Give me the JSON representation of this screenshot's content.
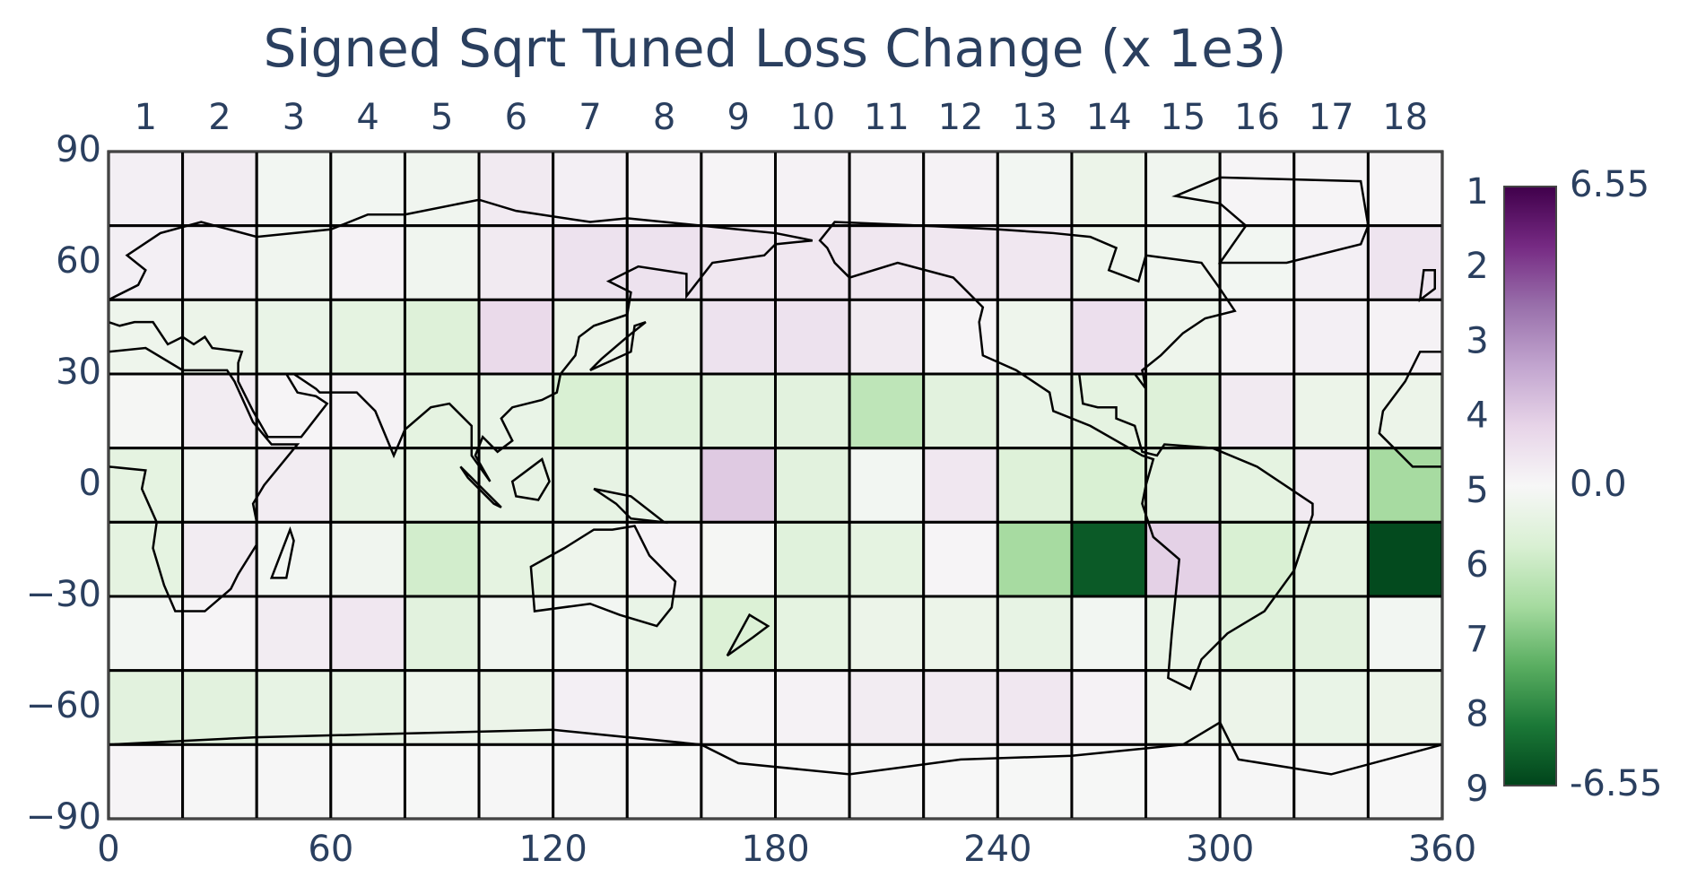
{
  "chart_data": {
    "type": "heatmap",
    "title": "Signed Sqrt Tuned Loss Change (x 1e3)",
    "columns": [
      "1",
      "2",
      "3",
      "4",
      "5",
      "6",
      "7",
      "8",
      "9",
      "10",
      "11",
      "12",
      "13",
      "14",
      "15",
      "16",
      "17",
      "18"
    ],
    "rows": [
      "1",
      "2",
      "3",
      "4",
      "5",
      "6",
      "7",
      "8",
      "9"
    ],
    "z": [
      [
        0.3,
        0.4,
        -0.2,
        -0.2,
        -0.3,
        0.5,
        0.3,
        0.2,
        0.1,
        0.2,
        0.2,
        0.2,
        -0.2,
        -0.5,
        -0.3,
        0.1,
        0.1,
        0.1
      ],
      [
        0.3,
        0.3,
        -0.3,
        0.2,
        -0.3,
        0.5,
        0.8,
        0.8,
        0.6,
        0.6,
        0.6,
        0.6,
        0.6,
        -0.4,
        -0.3,
        -0.2,
        0.3,
        0.7
      ],
      [
        -0.4,
        -0.5,
        -0.6,
        -0.8,
        -1.1,
        1.1,
        -0.5,
        -0.5,
        0.8,
        0.8,
        0.5,
        0.1,
        -0.4,
        0.9,
        -0.4,
        0.2,
        0.3,
        0.2
      ],
      [
        -0.1,
        0.4,
        0.1,
        0.2,
        -0.8,
        -0.6,
        -1.3,
        -1.0,
        -0.9,
        -0.9,
        -2.0,
        -0.9,
        -0.6,
        -0.8,
        -1.1,
        0.5,
        -0.5,
        -0.5
      ],
      [
        -0.8,
        -0.3,
        0.4,
        -0.7,
        -0.8,
        -0.7,
        -0.7,
        -0.6,
        1.6,
        -0.9,
        -0.2,
        0.6,
        -1.1,
        -1.3,
        -0.9,
        -0.8,
        0.5,
        -2.6
      ],
      [
        -0.8,
        0.4,
        -0.2,
        -0.3,
        -1.5,
        -0.8,
        -0.4,
        0.2,
        -0.1,
        -1.0,
        -0.8,
        0.1,
        -2.6,
        -6.0,
        1.4,
        -1.3,
        -0.8,
        -6.4
      ],
      [
        -0.2,
        0.1,
        0.4,
        0.6,
        -0.9,
        -0.3,
        -0.2,
        -0.6,
        -1.2,
        -0.8,
        -0.5,
        -0.5,
        -0.7,
        -0.2,
        -0.6,
        -1.0,
        -0.9,
        -0.2
      ],
      [
        -0.9,
        -0.9,
        -0.7,
        -0.7,
        -0.4,
        -0.5,
        0.3,
        0.2,
        0.1,
        0.2,
        0.4,
        0.5,
        0.6,
        0.2,
        -0.4,
        -0.5,
        -0.6,
        -0.5
      ],
      [
        0.1,
        0.05,
        0.05,
        0.0,
        -0.05,
        0.05,
        0.05,
        0.0,
        0.05,
        0.0,
        0.05,
        0.0,
        -0.05,
        -0.05,
        0.0,
        0.05,
        0.05,
        0.0
      ]
    ],
    "xlim": [
      0,
      360
    ],
    "xticks": [
      0,
      60,
      120,
      180,
      240,
      300,
      360
    ],
    "ylim": [
      -90,
      90
    ],
    "yticks": [
      {
        "value": -90,
        "label": "−90"
      },
      {
        "value": -60,
        "label": "−60"
      },
      {
        "value": -30,
        "label": "−30"
      },
      0,
      30,
      60,
      90
    ],
    "zlim": [
      -6.55,
      6.55
    ],
    "colorbar_ticks": [
      6.55,
      {
        "value": 0,
        "label": "0.0"
      },
      -6.55
    ],
    "colorscale": [
      "#00441b",
      "#1b7837",
      "#5aae61",
      "#a6dba0",
      "#d9f0d3",
      "#f7f7f7",
      "#e7d4e8",
      "#c2a5cf",
      "#9970ab",
      "#762a83",
      "#40004b"
    ]
  }
}
